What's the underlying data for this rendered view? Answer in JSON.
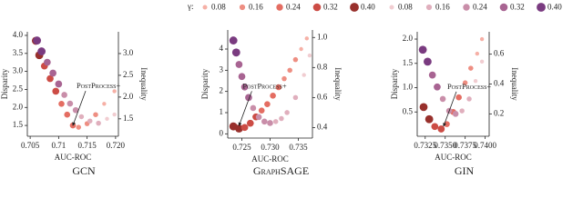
{
  "legend": {
    "title": "γ:",
    "disparity": {
      "labels": [
        "0.08",
        "0.16",
        "0.24",
        "0.32",
        "0.40"
      ],
      "colors": [
        "#f6b0a6",
        "#ee8e82",
        "#e46d62",
        "#cc4c45",
        "#98302c"
      ]
    },
    "inequality": {
      "labels": [
        "0.08",
        "0.16",
        "0.24",
        "0.32",
        "0.40"
      ],
      "colors": [
        "#f1cdd1",
        "#e0afbd",
        "#c98ea9",
        "#a86492",
        "#7a3b80"
      ]
    }
  },
  "chart_data": [
    {
      "type": "scatter",
      "title": "GCN",
      "xlabel": "AUC-ROC",
      "ylabel": "Disparity",
      "y2label": "Inequality",
      "xlim": [
        0.7045,
        0.7205
      ],
      "xticks": [
        0.705,
        0.71,
        0.715,
        {
          "value": 0.72,
          "label": "0.720"
        }
      ],
      "ylim": [
        1.2,
        4.1
      ],
      "yticks": [
        1.5,
        {
          "value": 2,
          "label": "2.0"
        },
        2.5,
        {
          "value": 3,
          "label": "3.0"
        },
        3.5,
        {
          "value": 4,
          "label": "4.0"
        }
      ],
      "y2lim": [
        1.1,
        3.5
      ],
      "y2ticks": [
        1.5,
        {
          "value": 2,
          "label": "2.0"
        },
        2.5,
        {
          "value": 3,
          "label": "3.0"
        }
      ],
      "annotation": {
        "text": "PostProcess+",
        "x": 0.7125,
        "y": 1.45
      },
      "series": [
        {
          "x": [
            0.706,
            0.7066,
            0.7075,
            0.7085,
            0.7095,
            0.7105,
            0.7115,
            0.7125,
            0.7135,
            0.715,
            0.7165,
            0.718,
            0.7198
          ],
          "values": [
            3.85,
            3.45,
            3.15,
            2.8,
            2.45,
            2.1,
            1.8,
            1.5,
            1.45,
            1.55,
            1.8,
            2.1,
            2.45
          ],
          "axis": "y"
        },
        {
          "x": [
            0.7062,
            0.707,
            0.708,
            0.709,
            0.71,
            0.711,
            0.712,
            0.713,
            0.714,
            0.7155,
            0.717,
            0.7185,
            0.7198
          ],
          "values": [
            3.3,
            3.05,
            2.8,
            2.55,
            2.3,
            2.05,
            1.85,
            1.7,
            1.55,
            1.45,
            1.4,
            1.5,
            1.6
          ],
          "axis": "y2"
        }
      ]
    },
    {
      "type": "scatter",
      "title": "GraphSAGE",
      "xlabel": "AUC-ROC",
      "ylabel": "Disparity",
      "y2label": "Inequality",
      "xlim": [
        0.7225,
        0.7375
      ],
      "xticks": [
        0.725,
        {
          "value": 0.73,
          "label": "0.730"
        },
        0.735
      ],
      "ylim": [
        -0.2,
        4.9
      ],
      "yticks": [
        0,
        1,
        2,
        3,
        4
      ],
      "y2lim": [
        0.33,
        1.05
      ],
      "y2ticks": [
        0.4,
        0.6,
        0.8,
        {
          "value": 1,
          "label": "1.0"
        }
      ],
      "annotation": {
        "text": "PostProcess+",
        "x": 0.7245,
        "y": 0.3
      },
      "series": [
        {
          "x": [
            0.7235,
            0.7245,
            0.7255,
            0.7265,
            0.7275,
            0.7285,
            0.7295,
            0.7305,
            0.7315,
            0.7325,
            0.7335,
            0.7345,
            0.7355,
            0.7365
          ],
          "values": [
            0.35,
            0.25,
            0.3,
            0.5,
            0.8,
            1.1,
            1.4,
            1.8,
            2.2,
            2.6,
            3.0,
            3.5,
            4.0,
            4.5
          ],
          "axis": "y"
        },
        {
          "x": [
            0.7235,
            0.724,
            0.7245,
            0.725,
            0.7255,
            0.7262,
            0.727,
            0.728,
            0.729,
            0.73,
            0.731,
            0.732,
            0.733,
            0.7345,
            0.736,
            0.737
          ],
          "values": [
            0.98,
            0.9,
            0.82,
            0.74,
            0.67,
            0.6,
            0.53,
            0.47,
            0.44,
            0.43,
            0.44,
            0.46,
            0.5,
            0.6,
            0.75,
            0.88
          ],
          "axis": "y2"
        }
      ]
    },
    {
      "type": "scatter",
      "title": "GIN",
      "xlabel": "AUC-ROC",
      "ylabel": "Disparity",
      "y2label": "Inequality",
      "xlim": [
        0.7315,
        0.7405
      ],
      "xticks": [
        0.7325,
        {
          "value": 0.735,
          "label": "0.7350"
        },
        0.7375,
        {
          "value": 0.74,
          "label": "0.7400"
        }
      ],
      "ylim": [
        0,
        2.15
      ],
      "yticks": [
        0.5,
        {
          "value": 1,
          "label": "1.0"
        },
        1.5,
        {
          "value": 2,
          "label": "2.0"
        }
      ],
      "y2lim": [
        0.05,
        0.75
      ],
      "y2ticks": [
        0.2,
        0.4,
        0.6
      ],
      "annotation": {
        "text": "PostProcess+",
        "x": 0.7348,
        "y": 0.17
      },
      "series": [
        {
          "x": [
            0.7323,
            0.733,
            0.7337,
            0.7345,
            0.7352,
            0.736,
            0.7367,
            0.7375,
            0.7382,
            0.739,
            0.7396
          ],
          "values": [
            0.6,
            0.35,
            0.2,
            0.15,
            0.25,
            0.5,
            0.8,
            1.1,
            1.4,
            1.7,
            2.0
          ],
          "axis": "y"
        },
        {
          "x": [
            0.7322,
            0.7328,
            0.7334,
            0.734,
            0.7347,
            0.7355,
            0.7363,
            0.7371,
            0.738,
            0.7388,
            0.7396
          ],
          "values": [
            0.63,
            0.55,
            0.46,
            0.38,
            0.3,
            0.22,
            0.2,
            0.22,
            0.3,
            0.42,
            0.55
          ],
          "axis": "y2"
        }
      ]
    }
  ]
}
